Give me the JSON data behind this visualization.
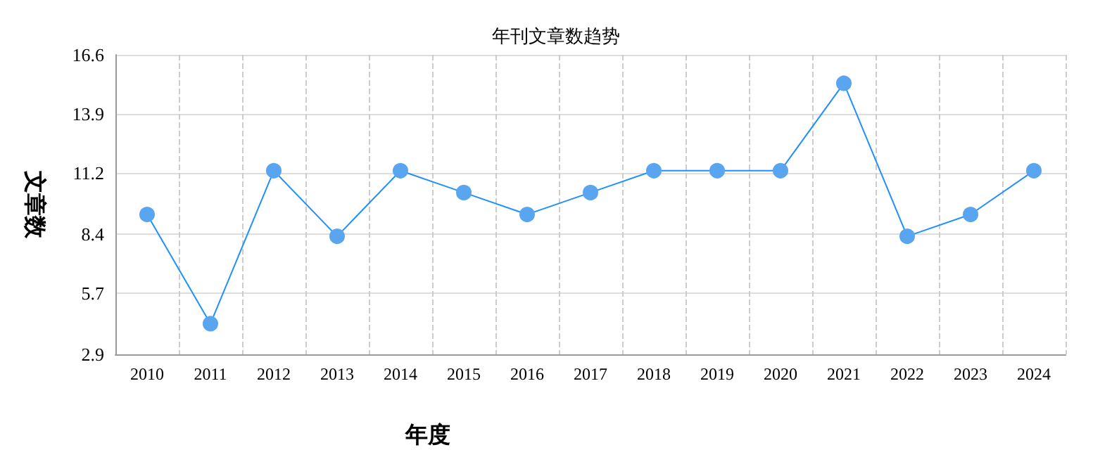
{
  "chart_data": {
    "type": "line",
    "title": "年刊文章数趋势",
    "xlabel": "年度",
    "ylabel": "文章数",
    "categories": [
      "2010",
      "2011",
      "2012",
      "2013",
      "2014",
      "2015",
      "2016",
      "2017",
      "2018",
      "2019",
      "2020",
      "2021",
      "2022",
      "2023",
      "2024"
    ],
    "series": [
      {
        "color": "#1e90ff",
        "values": [
          9.3,
          4.3,
          11.3,
          8.3,
          11.3,
          10.3,
          9.3,
          10.3,
          11.3,
          11.3,
          11.3,
          15.3,
          8.3,
          9.3,
          11.3
        ]
      }
    ],
    "ylim": [
      2.9,
      16.6
    ],
    "yticks": [
      2.9,
      5.7,
      8.4,
      11.2,
      13.9,
      16.6
    ],
    "grid": true,
    "marker": "circle",
    "line_style": "solid"
  }
}
